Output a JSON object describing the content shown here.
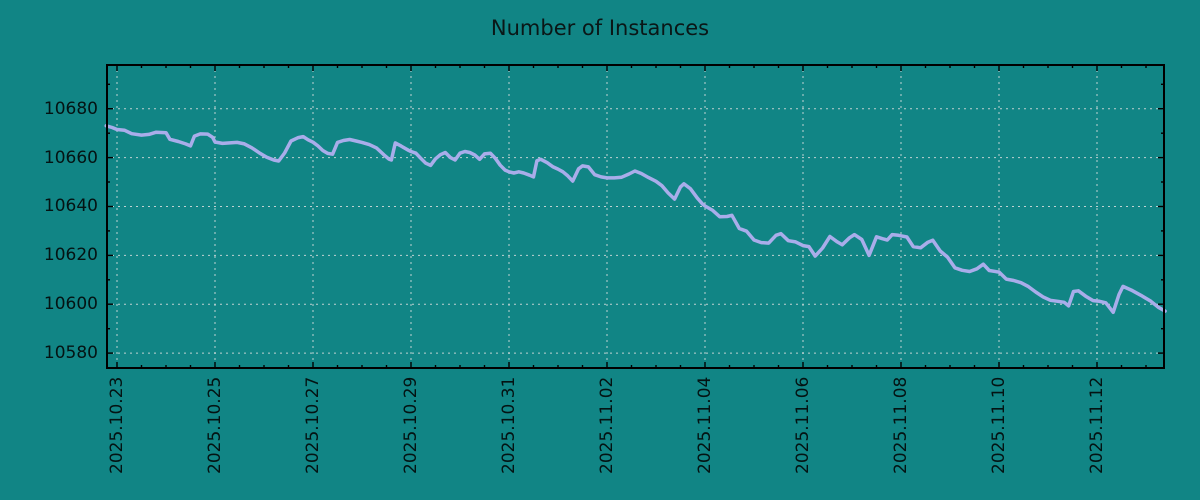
{
  "chart_data": {
    "type": "line",
    "title": "Number of Instances",
    "legend": "none",
    "grid": "on",
    "colors": {
      "background": "#118585",
      "line": "#a9adea",
      "grid": "#c0d2d2",
      "axis": "#000000",
      "text": "#0a1717"
    },
    "x_axis": {
      "label": "",
      "tick_labels": [
        "2025.10.23",
        "2025.10.25",
        "2025.10.27",
        "2025.10.29",
        "2025.10.31",
        "2025.11.02",
        "2025.11.04",
        "2025.11.06",
        "2025.11.08",
        "2025.11.10",
        "2025.11.12"
      ],
      "tick_days": [
        0,
        2,
        4,
        6,
        8,
        10,
        12,
        14,
        16,
        18,
        20
      ],
      "range_days": [
        -0.2245,
        21.3878
      ],
      "minor_step_days": 0.5
    },
    "y_axis": {
      "label": "",
      "tick_labels": [
        "10580",
        "10600",
        "10620",
        "10640",
        "10660",
        "10680"
      ],
      "tick_values": [
        10580,
        10600,
        10620,
        10640,
        10660,
        10680
      ],
      "range": [
        10573.5,
        10698.3
      ],
      "minor_step": 10
    },
    "points": [
      [
        -0.22,
        10673.0
      ],
      [
        -0.1,
        10672.3
      ],
      [
        0,
        10671.5
      ],
      [
        0.15,
        10671.2
      ],
      [
        0.3,
        10669.8
      ],
      [
        0.5,
        10669.2
      ],
      [
        0.65,
        10669.5
      ],
      [
        0.8,
        10670.4
      ],
      [
        1.0,
        10670.2
      ],
      [
        1.08,
        10667.5
      ],
      [
        1.25,
        10666.6
      ],
      [
        1.4,
        10665.6
      ],
      [
        1.5,
        10664.8
      ],
      [
        1.58,
        10668.8
      ],
      [
        1.7,
        10669.7
      ],
      [
        1.85,
        10669.6
      ],
      [
        1.95,
        10668.3
      ],
      [
        2.0,
        10666.4
      ],
      [
        2.15,
        10665.8
      ],
      [
        2.3,
        10666.0
      ],
      [
        2.45,
        10666.2
      ],
      [
        2.6,
        10665.6
      ],
      [
        2.75,
        10664.0
      ],
      [
        2.9,
        10662.0
      ],
      [
        3.05,
        10660.2
      ],
      [
        3.2,
        10659.0
      ],
      [
        3.3,
        10658.6
      ],
      [
        3.42,
        10661.9
      ],
      [
        3.55,
        10666.8
      ],
      [
        3.7,
        10668.2
      ],
      [
        3.8,
        10668.6
      ],
      [
        3.9,
        10667.3
      ],
      [
        4.0,
        10666.3
      ],
      [
        4.1,
        10664.8
      ],
      [
        4.2,
        10662.9
      ],
      [
        4.3,
        10661.7
      ],
      [
        4.4,
        10661.4
      ],
      [
        4.5,
        10666.2
      ],
      [
        4.62,
        10667.0
      ],
      [
        4.75,
        10667.4
      ],
      [
        4.88,
        10666.8
      ],
      [
        5.0,
        10666.2
      ],
      [
        5.15,
        10665.3
      ],
      [
        5.3,
        10663.9
      ],
      [
        5.45,
        10661.1
      ],
      [
        5.55,
        10659.4
      ],
      [
        5.6,
        10659.0
      ],
      [
        5.68,
        10666.0
      ],
      [
        5.8,
        10664.7
      ],
      [
        5.95,
        10663.0
      ],
      [
        6.0,
        10662.5
      ],
      [
        6.1,
        10661.8
      ],
      [
        6.2,
        10659.7
      ],
      [
        6.3,
        10657.7
      ],
      [
        6.4,
        10656.8
      ],
      [
        6.5,
        10659.5
      ],
      [
        6.6,
        10661.2
      ],
      [
        6.7,
        10662.1
      ],
      [
        6.8,
        10660.1
      ],
      [
        6.9,
        10659.0
      ],
      [
        7.0,
        10661.8
      ],
      [
        7.1,
        10662.5
      ],
      [
        7.2,
        10662.1
      ],
      [
        7.3,
        10661.1
      ],
      [
        7.4,
        10659.3
      ],
      [
        7.5,
        10661.5
      ],
      [
        7.62,
        10661.8
      ],
      [
        7.72,
        10659.7
      ],
      [
        7.82,
        10656.9
      ],
      [
        7.92,
        10654.9
      ],
      [
        8.0,
        10654.2
      ],
      [
        8.1,
        10653.7
      ],
      [
        8.2,
        10654.2
      ],
      [
        8.3,
        10653.7
      ],
      [
        8.42,
        10652.8
      ],
      [
        8.5,
        10652.1
      ],
      [
        8.57,
        10658.7
      ],
      [
        8.65,
        10659.3
      ],
      [
        8.78,
        10657.9
      ],
      [
        8.9,
        10656.2
      ],
      [
        9.0,
        10655.3
      ],
      [
        9.1,
        10654.2
      ],
      [
        9.2,
        10652.5
      ],
      [
        9.3,
        10650.4
      ],
      [
        9.42,
        10655.4
      ],
      [
        9.5,
        10656.6
      ],
      [
        9.62,
        10656.2
      ],
      [
        9.75,
        10653.0
      ],
      [
        9.88,
        10652.1
      ],
      [
        10.0,
        10651.7
      ],
      [
        10.15,
        10651.7
      ],
      [
        10.3,
        10652.0
      ],
      [
        10.45,
        10653.3
      ],
      [
        10.57,
        10654.5
      ],
      [
        10.7,
        10653.5
      ],
      [
        10.85,
        10651.8
      ],
      [
        11.0,
        10650.3
      ],
      [
        11.12,
        10648.5
      ],
      [
        11.25,
        10645.5
      ],
      [
        11.38,
        10643.0
      ],
      [
        11.5,
        10648.0
      ],
      [
        11.57,
        10649.3
      ],
      [
        11.7,
        10647.3
      ],
      [
        11.85,
        10643.3
      ],
      [
        11.95,
        10641.0
      ],
      [
        12.0,
        10640.2
      ],
      [
        12.15,
        10638.5
      ],
      [
        12.3,
        10635.8
      ],
      [
        12.45,
        10635.9
      ],
      [
        12.55,
        10636.4
      ],
      [
        12.7,
        10631.0
      ],
      [
        12.85,
        10629.9
      ],
      [
        13.0,
        10626.3
      ],
      [
        13.15,
        10625.2
      ],
      [
        13.3,
        10625.0
      ],
      [
        13.45,
        10628.2
      ],
      [
        13.55,
        10628.9
      ],
      [
        13.7,
        10626.0
      ],
      [
        13.85,
        10625.5
      ],
      [
        14.0,
        10624.0
      ],
      [
        14.12,
        10623.6
      ],
      [
        14.25,
        10619.7
      ],
      [
        14.4,
        10623.0
      ],
      [
        14.55,
        10627.7
      ],
      [
        14.7,
        10625.5
      ],
      [
        14.8,
        10624.3
      ],
      [
        14.95,
        10627.2
      ],
      [
        15.05,
        10628.5
      ],
      [
        15.2,
        10626.5
      ],
      [
        15.35,
        10620.0
      ],
      [
        15.5,
        10627.6
      ],
      [
        15.62,
        10626.8
      ],
      [
        15.72,
        10626.3
      ],
      [
        15.82,
        10628.5
      ],
      [
        15.95,
        10628.2
      ],
      [
        16.0,
        10628.0
      ],
      [
        16.12,
        10627.5
      ],
      [
        16.25,
        10623.6
      ],
      [
        16.4,
        10623.1
      ],
      [
        16.55,
        10625.4
      ],
      [
        16.65,
        10626.2
      ],
      [
        16.8,
        10621.8
      ],
      [
        16.95,
        10619.3
      ],
      [
        17.1,
        10614.9
      ],
      [
        17.25,
        10613.9
      ],
      [
        17.4,
        10613.4
      ],
      [
        17.55,
        10614.5
      ],
      [
        17.68,
        10616.4
      ],
      [
        17.8,
        10613.8
      ],
      [
        17.95,
        10613.3
      ],
      [
        18.0,
        10613.2
      ],
      [
        18.15,
        10610.3
      ],
      [
        18.3,
        10609.7
      ],
      [
        18.45,
        10608.8
      ],
      [
        18.6,
        10607.2
      ],
      [
        18.75,
        10605.0
      ],
      [
        18.9,
        10603.0
      ],
      [
        19.05,
        10601.6
      ],
      [
        19.2,
        10601.2
      ],
      [
        19.33,
        10600.8
      ],
      [
        19.42,
        10599.3
      ],
      [
        19.52,
        10605.2
      ],
      [
        19.62,
        10605.5
      ],
      [
        19.77,
        10603.3
      ],
      [
        19.92,
        10601.5
      ],
      [
        20.05,
        10601.2
      ],
      [
        20.18,
        10600.6
      ],
      [
        20.33,
        10596.7
      ],
      [
        20.45,
        10604.0
      ],
      [
        20.53,
        10607.3
      ],
      [
        20.7,
        10605.8
      ],
      [
        20.9,
        10603.6
      ],
      [
        21.1,
        10601.2
      ],
      [
        21.25,
        10598.8
      ],
      [
        21.39,
        10597.2
      ]
    ]
  }
}
